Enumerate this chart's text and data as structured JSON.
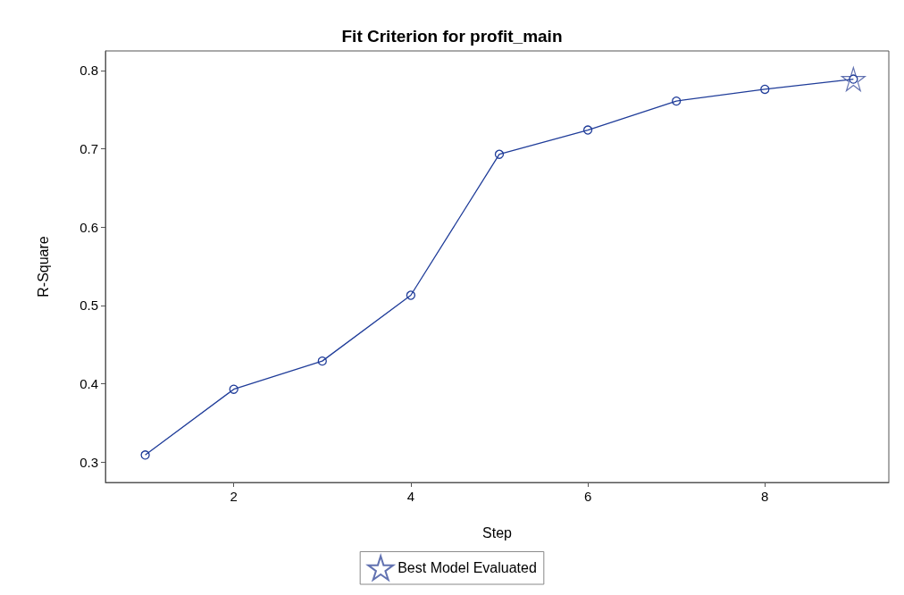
{
  "chart_data": {
    "type": "line",
    "title": "Fit Criterion for profit_main",
    "xlabel": "Step",
    "ylabel": "R-Square",
    "x": [
      1,
      2,
      3,
      4,
      5,
      6,
      7,
      8,
      9
    ],
    "series": [
      {
        "color": "#1f3c99",
        "marker": "circle",
        "values": [
          0.309,
          0.393,
          0.429,
          0.513,
          0.693,
          0.724,
          0.761,
          0.776,
          0.789
        ]
      },
      {
        "type": "scatter",
        "name": "Best Model Evaluated",
        "color": "#3b4f9e",
        "marker": "star",
        "x": [
          9
        ],
        "values": [
          0.789
        ]
      }
    ],
    "xlim": [
      0.55,
      9.4
    ],
    "xticks": [
      2,
      4,
      6,
      8
    ],
    "ylim": [
      0.274,
      0.825
    ],
    "yticks": [
      0.3,
      0.4,
      0.5,
      0.6,
      0.7,
      0.8
    ],
    "grid": false,
    "legend": "bottom",
    "line_style": "solid"
  }
}
